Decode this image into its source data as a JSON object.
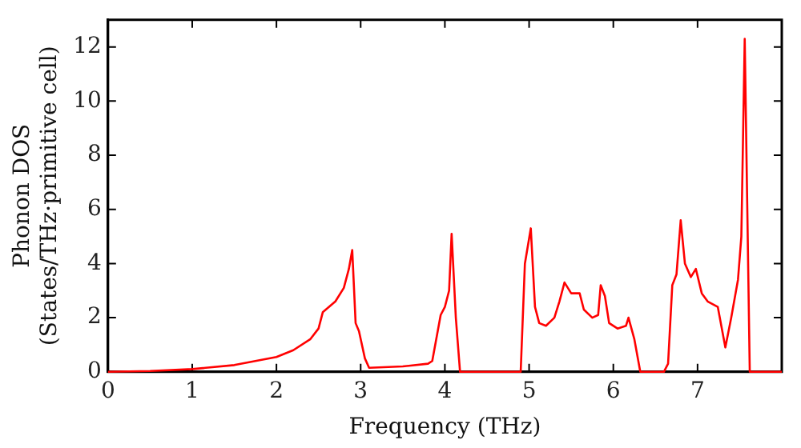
{
  "chart_data": {
    "type": "line",
    "xlabel": "Frequency (THz)",
    "ylabel": "Phonon DOS\n(States/THz·primitive cell)",
    "x": [
      0,
      0.5,
      1,
      1.5,
      2,
      2.2,
      2.4,
      2.5,
      2.55,
      2.7,
      2.8,
      2.86,
      2.9,
      2.94,
      2.98,
      3.05,
      3.1,
      3.5,
      3.8,
      3.85,
      3.95,
      4.0,
      4.05,
      4.08,
      4.13,
      4.18,
      4.9,
      4.95,
      5.02,
      5.07,
      5.12,
      5.2,
      5.3,
      5.36,
      5.42,
      5.5,
      5.6,
      5.65,
      5.75,
      5.82,
      5.85,
      5.9,
      5.95,
      6.05,
      6.15,
      6.18,
      6.25,
      6.32,
      6.6,
      6.65,
      6.7,
      6.75,
      6.8,
      6.85,
      6.92,
      6.98,
      7.05,
      7.12,
      7.24,
      7.33,
      7.4,
      7.48,
      7.52,
      7.56,
      7.62,
      8
    ],
    "series": [
      {
        "color": "#ff0000",
        "values": [
          0,
          0.03,
          0.1,
          0.25,
          0.55,
          0.8,
          1.2,
          1.6,
          2.2,
          2.6,
          3.1,
          3.8,
          4.5,
          1.8,
          1.5,
          0.5,
          0.15,
          0.2,
          0.3,
          0.4,
          2.1,
          2.4,
          3.0,
          5.1,
          2.0,
          0,
          0,
          4.0,
          5.3,
          2.4,
          1.8,
          1.7,
          2.0,
          2.6,
          3.3,
          2.9,
          2.9,
          2.3,
          2.0,
          2.1,
          3.2,
          2.8,
          1.8,
          1.6,
          1.7,
          2.0,
          1.2,
          0,
          0,
          0.3,
          3.2,
          3.6,
          5.6,
          4.0,
          3.5,
          3.8,
          2.9,
          2.6,
          2.4,
          0.9,
          2.0,
          3.4,
          5.0,
          12.3,
          0,
          0
        ]
      }
    ],
    "xlim": [
      0,
      8
    ],
    "xticks": [
      0,
      1,
      2,
      3,
      4,
      5,
      6,
      7
    ],
    "ylim": [
      0,
      13
    ],
    "yticks": [
      0,
      2,
      4,
      6,
      8,
      10,
      12
    ],
    "grid": false,
    "legend": false,
    "marker": "none",
    "line_style": "solid"
  }
}
